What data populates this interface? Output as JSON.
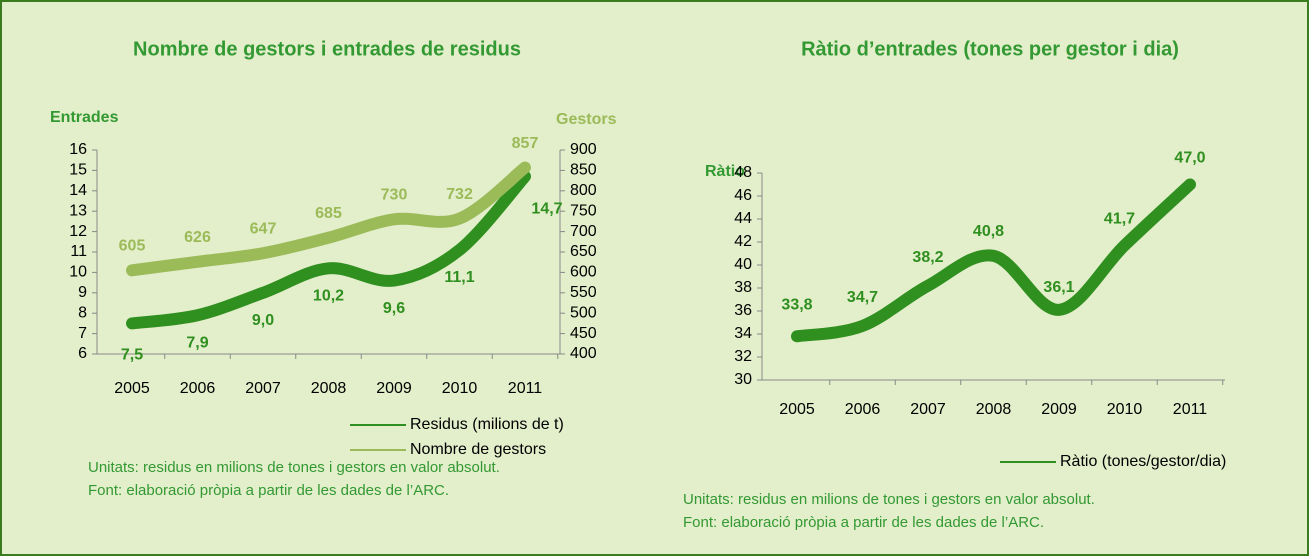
{
  "chart_data": [
    {
      "type": "line",
      "title": "Nombre de gestors i entrades de residus",
      "ylabel": "Entrades",
      "y2label": "Gestors",
      "categories": [
        "2005",
        "2006",
        "2007",
        "2008",
        "2009",
        "2010",
        "2011"
      ],
      "ylim": [
        6,
        16
      ],
      "yticks": [
        6,
        7,
        8,
        9,
        10,
        11,
        12,
        13,
        14,
        15,
        16
      ],
      "y2lim": [
        400,
        900
      ],
      "y2ticks": [
        400,
        450,
        500,
        550,
        600,
        650,
        700,
        750,
        800,
        850,
        900
      ],
      "legend": "bottom-right",
      "series": [
        {
          "name": "Residus (milions de t)",
          "color": "#2f8f1f",
          "values": [
            7.5,
            7.9,
            9.0,
            10.2,
            9.6,
            11.1,
            14.7
          ],
          "value_labels": [
            "7,5",
            "7,9",
            "9,0",
            "10,2",
            "9,6",
            "11,1",
            "14,7"
          ]
        },
        {
          "name": "Nombre de gestors",
          "color": "#9bbb59",
          "axis": "y2",
          "values": [
            605,
            626,
            647,
            685,
            730,
            732,
            857
          ]
        }
      ],
      "notes": [
        "Unitats: residus en milions de tones i gestors en valor absolut.",
        "Font: elaboració pròpia a partir de les dades de l’ARC."
      ]
    },
    {
      "type": "line",
      "title": "Ràtio d’entrades (tones per gestor i dia)",
      "ylabel": "Ràtio",
      "categories": [
        "2005",
        "2006",
        "2007",
        "2008",
        "2009",
        "2010",
        "2011"
      ],
      "ylim": [
        30,
        48
      ],
      "yticks": [
        30,
        32,
        34,
        36,
        38,
        40,
        42,
        44,
        46,
        48
      ],
      "legend": "bottom-right",
      "series": [
        {
          "name": "Ràtio (tones/gestor/dia)",
          "color": "#2f8f1f",
          "values": [
            33.8,
            34.7,
            38.2,
            40.8,
            36.1,
            41.7,
            47.0
          ],
          "value_labels": [
            "33,8",
            "34,7",
            "38,2",
            "40,8",
            "36,1",
            "41,7",
            "47,0"
          ]
        }
      ],
      "notes": [
        "Unitats: residus en milions de tones i gestors en valor absolut.",
        "Font: elaboració pròpia a partir de les dades de l’ARC."
      ]
    }
  ]
}
